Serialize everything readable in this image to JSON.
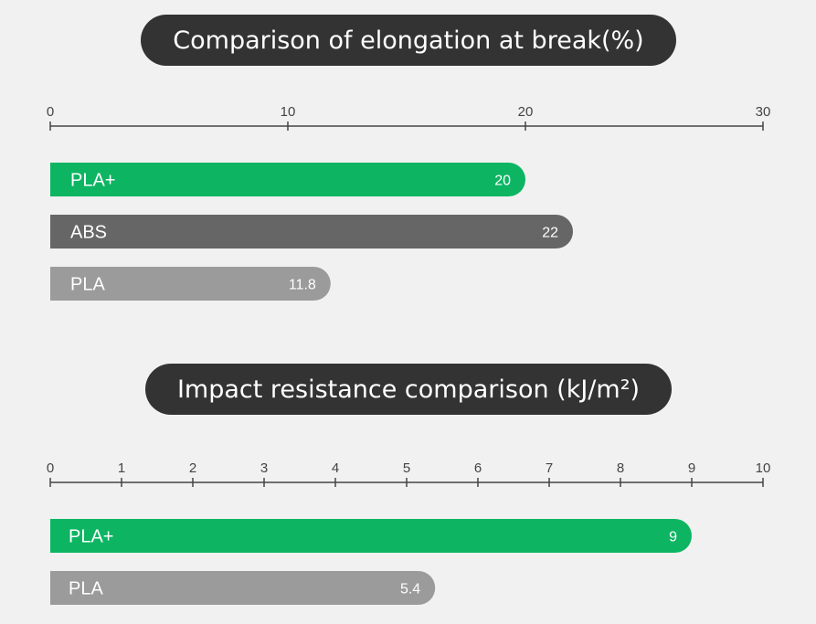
{
  "chart_data": [
    {
      "type": "bar",
      "orientation": "horizontal",
      "title": "Comparison of elongation at break(%)",
      "xlim": [
        0,
        30
      ],
      "ticks": [
        0,
        10,
        20,
        30
      ],
      "categories": [
        "PLA+",
        "ABS",
        "PLA"
      ],
      "values": [
        20,
        22,
        11.8
      ],
      "value_labels": [
        "20",
        "22",
        "11.8"
      ],
      "colors": [
        "#0db563",
        "#666666",
        "#9b9b9b"
      ]
    },
    {
      "type": "bar",
      "orientation": "horizontal",
      "title": "Impact resistance comparison (kJ/m²)",
      "xlim": [
        0,
        10
      ],
      "ticks": [
        0,
        1,
        2,
        3,
        4,
        5,
        6,
        7,
        8,
        9,
        10
      ],
      "categories": [
        "PLA+",
        "PLA"
      ],
      "values": [
        9,
        5.4
      ],
      "value_labels": [
        "9",
        "5.4"
      ],
      "colors": [
        "#0db563",
        "#9b9b9b"
      ]
    }
  ]
}
